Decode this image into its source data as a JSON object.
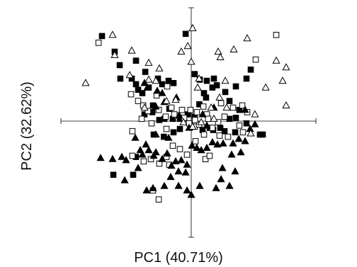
{
  "chart_data": {
    "type": "scatter",
    "title": "",
    "xlabel": "PC1 (40.71%)",
    "ylabel": "PC2 (32.62%)",
    "xlim": [
      -1,
      1
    ],
    "ylim": [
      -1,
      1
    ],
    "grid": false,
    "axes": "crossing-at-origin",
    "legend": "none",
    "colors": {
      "ink": "#000000",
      "background": "#ffffff"
    },
    "marker_styles": {
      "filled-square": {
        "shape": "square",
        "fill": true
      },
      "open-square": {
        "shape": "square",
        "fill": false
      },
      "filled-triangle": {
        "shape": "triangle",
        "fill": true
      },
      "open-triangle": {
        "shape": "triangle",
        "fill": false
      }
    },
    "series": [
      {
        "marker": "filled-square",
        "points": [
          [
            -0.716,
            0.76
          ],
          [
            -0.614,
            0.62
          ],
          [
            -0.574,
            0.5
          ],
          [
            -0.569,
            0.38
          ],
          [
            -0.443,
            0.54
          ],
          [
            -0.369,
            0.44
          ],
          [
            -0.477,
            0.38
          ],
          [
            -0.443,
            0.33
          ],
          [
            -0.426,
            0.28
          ],
          [
            -0.392,
            0.25
          ],
          [
            -0.341,
            0.3
          ],
          [
            -0.307,
            0.14
          ],
          [
            -0.267,
            0.38
          ],
          [
            -0.233,
            0.33
          ],
          [
            -0.142,
            0.34
          ],
          [
            -0.045,
            0.78
          ],
          [
            0.028,
            0.42
          ],
          [
            0.068,
            0.37
          ],
          [
            0.125,
            0.36
          ],
          [
            0.182,
            0.38
          ],
          [
            0.102,
            0.25
          ],
          [
            0.205,
            0.32
          ],
          [
            0.273,
            0.26
          ],
          [
            0.307,
            0.18
          ],
          [
            0.358,
            0.31
          ],
          [
            0.443,
            0.38
          ],
          [
            0.477,
            0.46
          ],
          [
            0.386,
            0.1
          ],
          [
            0.443,
            -0.02
          ],
          [
            0.352,
            -0.1
          ],
          [
            0.267,
            -0.09
          ],
          [
            0.233,
            -0.06
          ],
          [
            0.176,
            -0.08
          ],
          [
            0.148,
            -0.06
          ],
          [
            0.091,
            -0.08
          ],
          [
            0.028,
            0.04
          ],
          [
            -0.028,
            0.06
          ],
          [
            -0.091,
            0.02
          ],
          [
            -0.148,
            0.02
          ],
          [
            -0.216,
            0.02
          ],
          [
            -0.256,
            0.01
          ],
          [
            -0.312,
            0.08
          ],
          [
            -0.375,
            0.06
          ],
          [
            -0.182,
            0.36
          ],
          [
            0.17,
            0.3
          ],
          [
            0.307,
            0.02
          ],
          [
            0.358,
            0.03
          ],
          [
            0.551,
            -0.12
          ],
          [
            0.574,
            -0.12
          ],
          [
            -0.301,
            -0.12
          ],
          [
            -0.22,
            -0.14
          ],
          [
            -0.142,
            -0.1
          ],
          [
            -0.091,
            -0.07
          ],
          [
            -0.176,
            0.11
          ],
          [
            -0.443,
            -0.32
          ],
          [
            -0.466,
            -0.48
          ],
          [
            -0.625,
            -0.48
          ],
          [
            0.065,
            0.15
          ],
          [
            0.119,
            0.21
          ]
        ]
      },
      {
        "marker": "open-square",
        "points": [
          [
            -0.744,
            0.7
          ],
          [
            -0.483,
            0.24
          ],
          [
            -0.426,
            0.18
          ],
          [
            -0.386,
            0.14
          ],
          [
            -0.347,
            0.09
          ],
          [
            -0.278,
            0.23
          ],
          [
            -0.261,
            0.1
          ],
          [
            -0.205,
            0.04
          ],
          [
            -0.159,
            0.12
          ],
          [
            -0.119,
            0.05
          ],
          [
            -0.074,
            0.1
          ],
          [
            -0.057,
            0.03
          ],
          [
            -0.017,
            -0.02
          ],
          [
            0.045,
            0.08
          ],
          [
            0.028,
            -0.05
          ],
          [
            0.063,
            -0.03
          ],
          [
            0.097,
            0.13
          ],
          [
            0.125,
            0.06
          ],
          [
            0.136,
            0.02
          ],
          [
            0.17,
            -0.06
          ],
          [
            0.216,
            -0.01
          ],
          [
            0.227,
            -0.13
          ],
          [
            0.267,
            0.04
          ],
          [
            0.295,
            -0.14
          ],
          [
            0.335,
            0.12
          ],
          [
            0.409,
            0.14
          ],
          [
            0.386,
            -0.04
          ],
          [
            0.415,
            -0.1
          ],
          [
            0.449,
            0.08
          ],
          [
            0.682,
            0.77
          ],
          [
            0.517,
            0.55
          ],
          [
            -0.472,
            -0.09
          ],
          [
            -0.256,
            -0.38
          ],
          [
            -0.199,
            -0.32
          ],
          [
            -0.148,
            -0.22
          ],
          [
            -0.091,
            -0.25
          ],
          [
            -0.034,
            -0.3
          ],
          [
            -0.199,
            -0.07
          ],
          [
            0.034,
            -0.18
          ],
          [
            -0.176,
            -0.39
          ],
          [
            -0.381,
            -0.36
          ],
          [
            -0.324,
            -0.34
          ],
          [
            -0.472,
            -0.31
          ],
          [
            -0.307,
            -0.62
          ],
          [
            -0.261,
            -0.7
          ],
          [
            0.114,
            -0.34
          ],
          [
            0.148,
            -0.31
          ],
          [
            -0.193,
            0.31
          ],
          [
            0.03,
            0.01
          ],
          [
            -0.136,
            0.06
          ],
          [
            0.102,
            -0.12
          ],
          [
            -0.006,
            0.1
          ],
          [
            0.239,
            0.16
          ],
          [
            -0.318,
            -0.02
          ],
          [
            -0.398,
            0.02
          ]
        ]
      },
      {
        "marker": "filled-triangle",
        "points": [
          [
            -0.284,
            -0.12
          ],
          [
            -0.216,
            0.17
          ],
          [
            -0.182,
            -0.15
          ],
          [
            -0.364,
            -0.21
          ],
          [
            -0.409,
            -0.26
          ],
          [
            -0.449,
            -0.15
          ],
          [
            -0.392,
            -0.3
          ],
          [
            -0.341,
            -0.26
          ],
          [
            -0.284,
            -0.28
          ],
          [
            -0.233,
            -0.34
          ],
          [
            -0.193,
            -0.29
          ],
          [
            -0.159,
            -0.4
          ],
          [
            -0.125,
            -0.36
          ],
          [
            -0.08,
            -0.35
          ],
          [
            -0.034,
            -0.39
          ],
          [
            0.006,
            -0.22
          ],
          [
            0.045,
            -0.24
          ],
          [
            0.08,
            -0.26
          ],
          [
            -0.045,
            -0.46
          ],
          [
            -0.102,
            -0.45
          ],
          [
            -0.165,
            -0.5
          ],
          [
            0.125,
            -0.24
          ],
          [
            0.17,
            -0.19
          ],
          [
            0.21,
            -0.21
          ],
          [
            0.256,
            -0.2
          ],
          [
            0.335,
            -0.2
          ],
          [
            0.381,
            -0.16
          ],
          [
            0.432,
            -0.18
          ],
          [
            0.472,
            -0.07
          ],
          [
            0.511,
            -0.03
          ],
          [
            0.432,
            0.1
          ],
          [
            0.398,
            -0.28
          ],
          [
            0.324,
            -0.3
          ],
          [
            0.25,
            -0.42
          ],
          [
            0.239,
            -0.52
          ],
          [
            0.307,
            -0.58
          ],
          [
            0.352,
            -0.45
          ],
          [
            0.199,
            -0.6
          ],
          [
            0.068,
            -0.58
          ],
          [
            -0.034,
            -0.62
          ],
          [
            -0.102,
            -0.58
          ],
          [
            -0.216,
            -0.58
          ],
          [
            -0.307,
            -0.6
          ],
          [
            -0.358,
            -0.62
          ],
          [
            -0.523,
            -0.35
          ],
          [
            -0.631,
            -0.34
          ],
          [
            -0.557,
            -0.32
          ],
          [
            -0.727,
            -0.33
          ],
          [
            -0.375,
            0.34
          ],
          [
            -0.352,
            0.3
          ],
          [
            -0.273,
            0.27
          ],
          [
            -0.233,
            0.25
          ],
          [
            -0.284,
            0.13
          ],
          [
            -0.119,
            0.21
          ],
          [
            0.091,
            0.06
          ],
          [
            0.182,
            0.12
          ],
          [
            0.125,
            -0.04
          ],
          [
            -0.097,
            0.05
          ],
          [
            -0.017,
            -0.06
          ],
          [
            -0.301,
            -0.31
          ],
          [
            -0.426,
            -0.42
          ],
          [
            -0.534,
            -0.53
          ],
          [
            0.0,
            -0.66
          ]
        ]
      },
      {
        "marker": "open-triangle",
        "points": [
          [
            -0.847,
            0.34
          ],
          [
            -0.631,
            0.77
          ],
          [
            -0.614,
            0.59
          ],
          [
            -0.477,
            0.63
          ],
          [
            -0.494,
            0.41
          ],
          [
            -0.341,
            0.52
          ],
          [
            -0.341,
            0.37
          ],
          [
            -0.284,
            0.36
          ],
          [
            -0.256,
            0.47
          ],
          [
            -0.08,
            0.62
          ],
          [
            -0.028,
            0.67
          ],
          [
            0.011,
            0.83
          ],
          [
            0.0,
            0.53
          ],
          [
            0.063,
            0.38
          ],
          [
            0.216,
            0.62
          ],
          [
            0.233,
            0.57
          ],
          [
            0.341,
            0.64
          ],
          [
            0.449,
            0.74
          ],
          [
            0.682,
            0.54
          ],
          [
            0.761,
            0.48
          ],
          [
            0.733,
            0.36
          ],
          [
            0.761,
            0.14
          ],
          [
            0.597,
            0.3
          ],
          [
            0.511,
            0.06
          ],
          [
            0.477,
            -0.11
          ],
          [
            0.227,
            0.21
          ],
          [
            0.159,
            0.12
          ],
          [
            0.182,
            0.02
          ],
          [
            0.08,
            -0.01
          ],
          [
            -0.063,
            -0.01
          ],
          [
            -0.125,
            0.19
          ],
          [
            -0.199,
            0.18
          ],
          [
            -0.375,
            0.12
          ],
          [
            0.051,
            0.3
          ],
          [
            0.284,
            0.12
          ],
          [
            0.011,
            -0.05
          ],
          [
            0.273,
            0.36
          ]
        ]
      }
    ]
  }
}
